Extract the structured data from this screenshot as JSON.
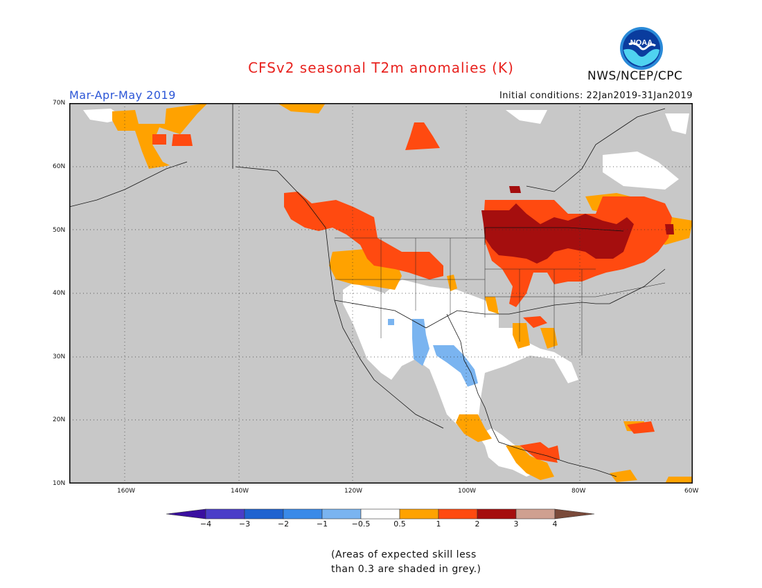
{
  "title": "CFSv2 seasonal T2m anomalies (K)",
  "season": "Mar-Apr-May 2019",
  "initial_conditions": "Initial conditions: 22Jan2019-31Jan2019",
  "agency": "NWS/NCEP/CPC",
  "logo_text": "NOAA",
  "colors": {
    "title": "#e8231f",
    "season": "#2b55d6",
    "skill_grey": "#c8c8c8",
    "land_white": "#ffffff"
  },
  "map": {
    "lon_range": [
      -170,
      -60
    ],
    "lat_range": [
      10,
      70
    ],
    "lat_labels": [
      "70N",
      "60N",
      "50N",
      "40N",
      "30N",
      "20N",
      "10N"
    ],
    "lon_labels": [
      "160W",
      "140W",
      "120W",
      "100W",
      "80W",
      "60W"
    ]
  },
  "legend": {
    "bins": [
      {
        "color": "#3a0fa0"
      },
      {
        "color": "#4a3ec8"
      },
      {
        "color": "#1f63d0"
      },
      {
        "color": "#3a8ae8"
      },
      {
        "color": "#7ab4f0"
      },
      {
        "color": "#ffffff"
      },
      {
        "color": "#ffa200"
      },
      {
        "color": "#ff4a10"
      },
      {
        "color": "#a50e0e"
      },
      {
        "color": "#cfa090"
      },
      {
        "color": "#7a4a3a"
      }
    ],
    "labels": [
      "−4",
      "−3",
      "−2",
      "−1",
      "−0.5",
      "0.5",
      "1",
      "2",
      "3",
      "4"
    ]
  },
  "note_lines": [
    "(Areas of expected skill less",
    "than 0.3 are shaded in grey.)"
  ]
}
